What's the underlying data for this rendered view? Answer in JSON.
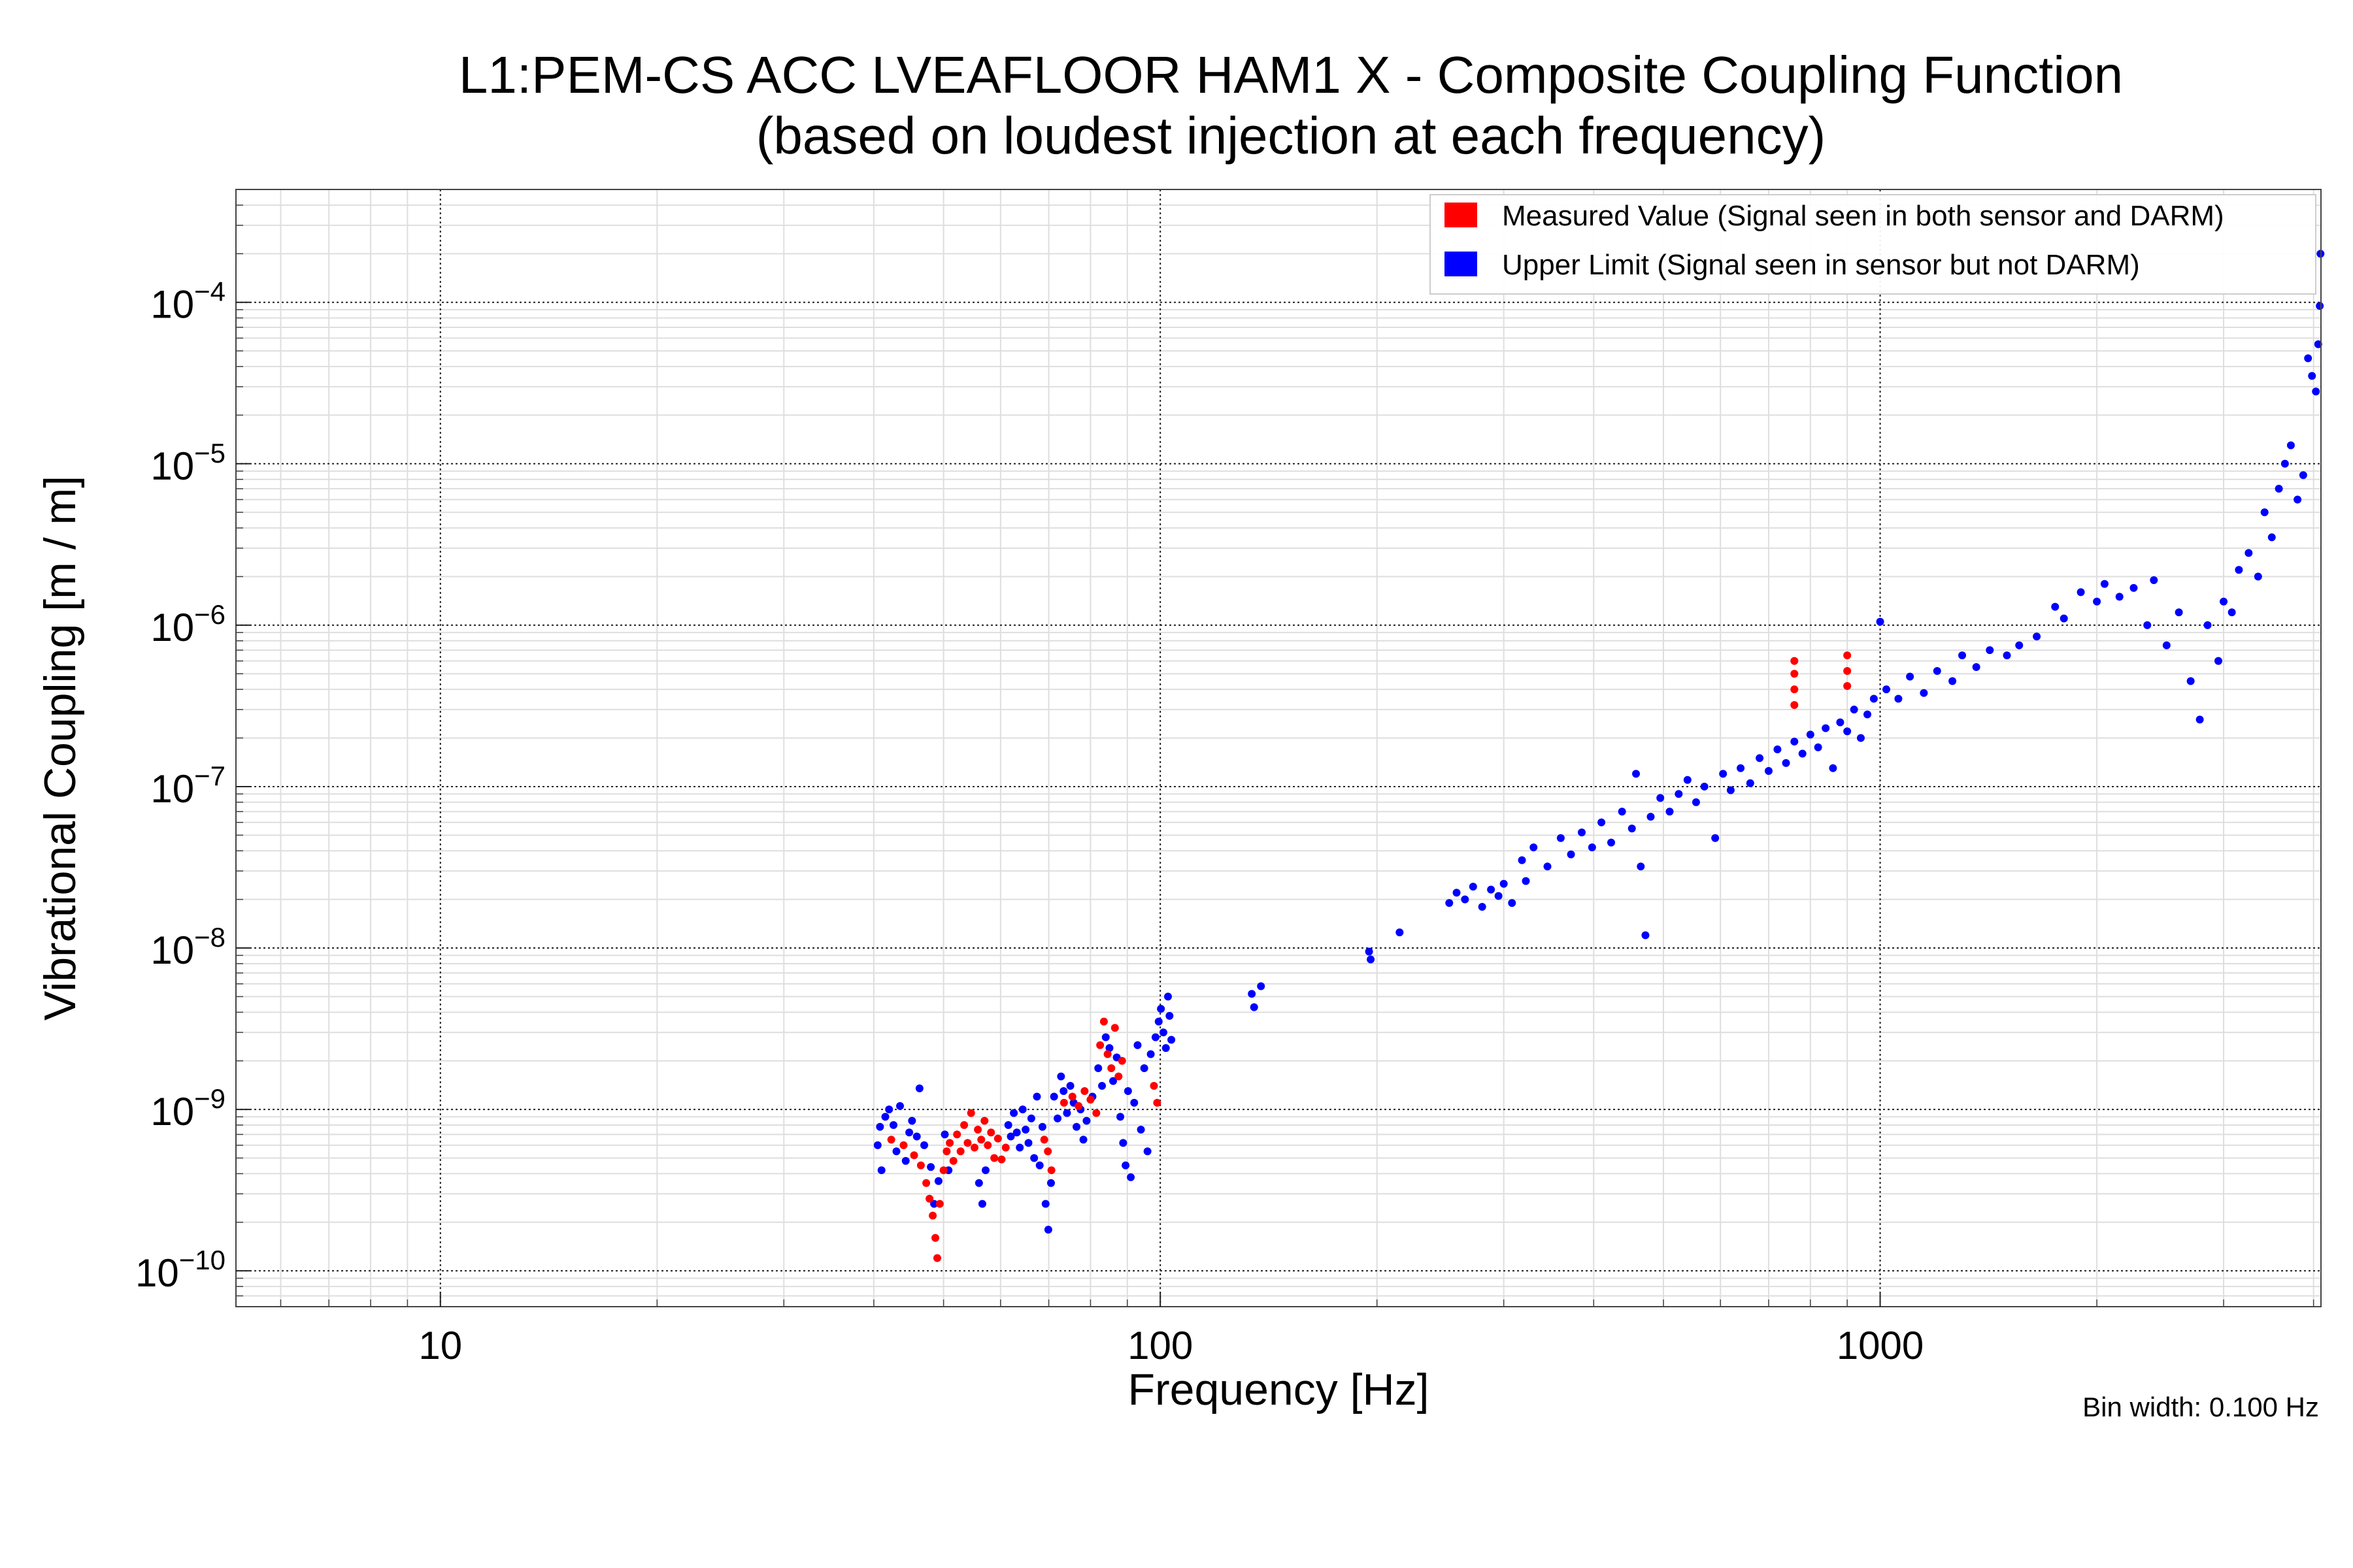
{
  "chart_data": {
    "type": "scatter",
    "title": "L1:PEM-CS ACC LVEAFLOOR HAM1 X - Composite Coupling Function",
    "subtitle": "(based on loudest injection at each frequency)",
    "xlabel": "Frequency [Hz]",
    "ylabel": "Vibrational Coupling [m / m]",
    "x_scale": "log",
    "y_scale": "log",
    "xlim": [
      5.2,
      4096
    ],
    "ylim": [
      6e-11,
      0.0005
    ],
    "x_ticks": [
      {
        "value": 10,
        "label": "10"
      },
      {
        "value": 100,
        "label": "100"
      },
      {
        "value": 1000,
        "label": "1000"
      }
    ],
    "y_ticks": [
      {
        "value": 1e-10,
        "base": "10",
        "exp": "−10"
      },
      {
        "value": 1e-09,
        "base": "10",
        "exp": "−9"
      },
      {
        "value": 1e-08,
        "base": "10",
        "exp": "−8"
      },
      {
        "value": 1e-07,
        "base": "10",
        "exp": "−7"
      },
      {
        "value": 1e-06,
        "base": "10",
        "exp": "−6"
      },
      {
        "value": 1e-05,
        "base": "10",
        "exp": "−5"
      },
      {
        "value": 0.0001,
        "base": "10",
        "exp": "−4"
      }
    ],
    "grid": true,
    "legend_position": "top-right",
    "note": "Bin width: 0.100 Hz",
    "series": [
      {
        "name": "Measured Value (Signal seen in both sensor and DARM)",
        "color": "#ff0000",
        "points": [
          [
            42.3,
            6.5e-10
          ],
          [
            44.0,
            6e-10
          ],
          [
            45.5,
            5.2e-10
          ],
          [
            46.5,
            4.5e-10
          ],
          [
            47.3,
            3.5e-10
          ],
          [
            47.8,
            2.8e-10
          ],
          [
            48.3,
            2.2e-10
          ],
          [
            48.7,
            1.6e-10
          ],
          [
            49.0,
            1.2e-10
          ],
          [
            49.4,
            2.6e-10
          ],
          [
            50.0,
            4.2e-10
          ],
          [
            50.5,
            5.5e-10
          ],
          [
            51.0,
            6.2e-10
          ],
          [
            51.6,
            4.8e-10
          ],
          [
            52.2,
            7e-10
          ],
          [
            52.8,
            5.5e-10
          ],
          [
            53.4,
            8e-10
          ],
          [
            54.0,
            6.2e-10
          ],
          [
            54.6,
            9.5e-10
          ],
          [
            55.2,
            5.8e-10
          ],
          [
            55.8,
            7.5e-10
          ],
          [
            56.4,
            6.5e-10
          ],
          [
            57.0,
            8.5e-10
          ],
          [
            57.6,
            6e-10
          ],
          [
            58.2,
            7.2e-10
          ],
          [
            58.8,
            5e-10
          ],
          [
            59.5,
            6.6e-10
          ],
          [
            60.2,
            4.9e-10
          ],
          [
            61.0,
            5.8e-10
          ],
          [
            69.0,
            6.5e-10
          ],
          [
            69.8,
            5.5e-10
          ],
          [
            70.6,
            4.2e-10
          ],
          [
            73.5,
            1.1e-09
          ],
          [
            75.5,
            1.2e-09
          ],
          [
            77.0,
            1.05e-09
          ],
          [
            78.5,
            1.3e-09
          ],
          [
            80.0,
            1.15e-09
          ],
          [
            81.5,
            9.5e-10
          ],
          [
            82.5,
            2.5e-09
          ],
          [
            83.5,
            3.5e-09
          ],
          [
            84.5,
            2.2e-09
          ],
          [
            85.5,
            1.8e-09
          ],
          [
            86.5,
            3.2e-09
          ],
          [
            87.5,
            1.6e-09
          ],
          [
            88.5,
            2e-09
          ],
          [
            98.0,
            1.4e-09
          ],
          [
            99.0,
            1.1e-09
          ],
          [
            760,
            6e-07
          ],
          [
            760,
            5e-07
          ],
          [
            760,
            4e-07
          ],
          [
            760,
            3.2e-07
          ],
          [
            900,
            6.5e-07
          ],
          [
            900,
            5.2e-07
          ],
          [
            900,
            4.2e-07
          ]
        ]
      },
      {
        "name": "Upper Limit (Signal seen in sensor but not DARM)",
        "color": "#0000ff",
        "points": [
          [
            40.5,
            6e-10
          ],
          [
            40.8,
            7.8e-10
          ],
          [
            41.0,
            4.2e-10
          ],
          [
            41.5,
            9e-10
          ],
          [
            42.0,
            1e-09
          ],
          [
            42.6,
            8e-10
          ],
          [
            43.0,
            5.5e-10
          ],
          [
            43.5,
            1.05e-09
          ],
          [
            44.3,
            4.8e-10
          ],
          [
            44.8,
            7.2e-10
          ],
          [
            45.2,
            8.5e-10
          ],
          [
            45.9,
            6.8e-10
          ],
          [
            46.3,
            1.35e-09
          ],
          [
            47.0,
            6e-10
          ],
          [
            48.0,
            4.4e-10
          ],
          [
            48.5,
            2.6e-10
          ],
          [
            49.2,
            3.6e-10
          ],
          [
            50.2,
            7e-10
          ],
          [
            50.8,
            4.2e-10
          ],
          [
            56.0,
            3.5e-10
          ],
          [
            56.6,
            2.6e-10
          ],
          [
            57.2,
            4.2e-10
          ],
          [
            61.5,
            8e-10
          ],
          [
            62.0,
            6.8e-10
          ],
          [
            62.6,
            9.5e-10
          ],
          [
            63.2,
            7.2e-10
          ],
          [
            63.8,
            5.8e-10
          ],
          [
            64.4,
            1e-09
          ],
          [
            65.0,
            7.5e-10
          ],
          [
            65.6,
            6.2e-10
          ],
          [
            66.2,
            8.8e-10
          ],
          [
            66.8,
            5e-10
          ],
          [
            67.4,
            1.2e-09
          ],
          [
            68.0,
            4.5e-10
          ],
          [
            68.6,
            7.8e-10
          ],
          [
            69.3,
            2.6e-10
          ],
          [
            69.9,
            1.8e-10
          ],
          [
            70.5,
            3.5e-10
          ],
          [
            71.2,
            1.2e-09
          ],
          [
            72.0,
            8.8e-10
          ],
          [
            72.8,
            1.6e-09
          ],
          [
            73.4,
            1.3e-09
          ],
          [
            74.2,
            9.5e-10
          ],
          [
            75.0,
            1.4e-09
          ],
          [
            75.8,
            1.1e-09
          ],
          [
            76.5,
            7.8e-10
          ],
          [
            77.5,
            1e-09
          ],
          [
            78.2,
            6.5e-10
          ],
          [
            79.0,
            8.5e-10
          ],
          [
            80.5,
            1.2e-09
          ],
          [
            82.0,
            1.8e-09
          ],
          [
            83.0,
            1.4e-09
          ],
          [
            84.0,
            2.8e-09
          ],
          [
            85.0,
            2.4e-09
          ],
          [
            86.0,
            1.5e-09
          ],
          [
            87.0,
            2.1e-09
          ],
          [
            88.0,
            9e-10
          ],
          [
            88.8,
            6.2e-10
          ],
          [
            89.5,
            4.5e-10
          ],
          [
            90.2,
            1.3e-09
          ],
          [
            91.0,
            3.8e-10
          ],
          [
            92.0,
            1.1e-09
          ],
          [
            93.0,
            2.5e-09
          ],
          [
            94.0,
            7.5e-10
          ],
          [
            95.0,
            1.8e-09
          ],
          [
            96.0,
            5.5e-10
          ],
          [
            97.0,
            2.2e-09
          ],
          [
            98.5,
            2.8e-09
          ],
          [
            99.5,
            3.5e-09
          ],
          [
            100.2,
            4.2e-09
          ],
          [
            101.0,
            3e-09
          ],
          [
            101.8,
            2.4e-09
          ],
          [
            102.5,
            5e-09
          ],
          [
            103.0,
            3.8e-09
          ],
          [
            103.6,
            2.7e-09
          ],
          [
            134,
            5.2e-09
          ],
          [
            135,
            4.3e-09
          ],
          [
            138,
            5.8e-09
          ],
          [
            195,
            9.5e-09
          ],
          [
            196,
            8.5e-09
          ],
          [
            215,
            1.25e-08
          ],
          [
            252,
            1.9e-08
          ],
          [
            258,
            2.2e-08
          ],
          [
            265,
            2e-08
          ],
          [
            272,
            2.4e-08
          ],
          [
            280,
            1.8e-08
          ],
          [
            288,
            2.3e-08
          ],
          [
            295,
            2.1e-08
          ],
          [
            300,
            2.5e-08
          ],
          [
            308,
            1.9e-08
          ],
          [
            318,
            3.5e-08
          ],
          [
            322,
            2.6e-08
          ],
          [
            330,
            4.2e-08
          ],
          [
            345,
            3.2e-08
          ],
          [
            360,
            4.8e-08
          ],
          [
            372,
            3.8e-08
          ],
          [
            385,
            5.2e-08
          ],
          [
            398,
            4.2e-08
          ],
          [
            410,
            6e-08
          ],
          [
            423,
            4.5e-08
          ],
          [
            438,
            7e-08
          ],
          [
            452,
            5.5e-08
          ],
          [
            458,
            1.2e-07
          ],
          [
            465,
            3.2e-08
          ],
          [
            472,
            1.2e-08
          ],
          [
            480,
            6.5e-08
          ],
          [
            495,
            8.5e-08
          ],
          [
            510,
            7e-08
          ],
          [
            525,
            9e-08
          ],
          [
            540,
            1.1e-07
          ],
          [
            555,
            8e-08
          ],
          [
            570,
            1e-07
          ],
          [
            590,
            4.8e-08
          ],
          [
            605,
            1.2e-07
          ],
          [
            620,
            9.5e-08
          ],
          [
            640,
            1.3e-07
          ],
          [
            660,
            1.05e-07
          ],
          [
            680,
            1.5e-07
          ],
          [
            700,
            1.25e-07
          ],
          [
            720,
            1.7e-07
          ],
          [
            740,
            1.4e-07
          ],
          [
            760,
            1.9e-07
          ],
          [
            780,
            1.6e-07
          ],
          [
            800,
            2.1e-07
          ],
          [
            820,
            1.75e-07
          ],
          [
            840,
            2.3e-07
          ],
          [
            860,
            1.3e-07
          ],
          [
            880,
            2.5e-07
          ],
          [
            900,
            2.2e-07
          ],
          [
            920,
            3e-07
          ],
          [
            940,
            2e-07
          ],
          [
            960,
            2.8e-07
          ],
          [
            980,
            3.5e-07
          ],
          [
            1000,
            1.05e-06
          ],
          [
            1020,
            4e-07
          ],
          [
            1060,
            3.5e-07
          ],
          [
            1100,
            4.8e-07
          ],
          [
            1150,
            3.8e-07
          ],
          [
            1200,
            5.2e-07
          ],
          [
            1260,
            4.5e-07
          ],
          [
            1300,
            6.5e-07
          ],
          [
            1360,
            5.5e-07
          ],
          [
            1420,
            7e-07
          ],
          [
            1500,
            6.5e-07
          ],
          [
            1560,
            7.5e-07
          ],
          [
            1650,
            8.5e-07
          ],
          [
            1750,
            1.3e-06
          ],
          [
            1800,
            1.1e-06
          ],
          [
            1900,
            1.6e-06
          ],
          [
            2000,
            1.4e-06
          ],
          [
            2050,
            1.8e-06
          ],
          [
            2150,
            1.5e-06
          ],
          [
            2250,
            1.7e-06
          ],
          [
            2350,
            1e-06
          ],
          [
            2400,
            1.9e-06
          ],
          [
            2500,
            7.5e-07
          ],
          [
            2600,
            1.2e-06
          ],
          [
            2700,
            4.5e-07
          ],
          [
            2780,
            2.6e-07
          ],
          [
            2850,
            1e-06
          ],
          [
            2950,
            6e-07
          ],
          [
            3000,
            1.4e-06
          ],
          [
            3080,
            1.2e-06
          ],
          [
            3150,
            2.2e-06
          ],
          [
            3250,
            2.8e-06
          ],
          [
            3350,
            2e-06
          ],
          [
            3420,
            5e-06
          ],
          [
            3500,
            3.5e-06
          ],
          [
            3580,
            7e-06
          ],
          [
            3650,
            1e-05
          ],
          [
            3720,
            1.3e-05
          ],
          [
            3800,
            6e-06
          ],
          [
            3870,
            8.5e-06
          ],
          [
            3930,
            4.5e-05
          ],
          [
            3980,
            3.5e-05
          ],
          [
            4030,
            2.8e-05
          ],
          [
            4060,
            5.5e-05
          ],
          [
            4080,
            9.5e-05
          ],
          [
            4090,
            0.0002
          ]
        ]
      }
    ]
  }
}
